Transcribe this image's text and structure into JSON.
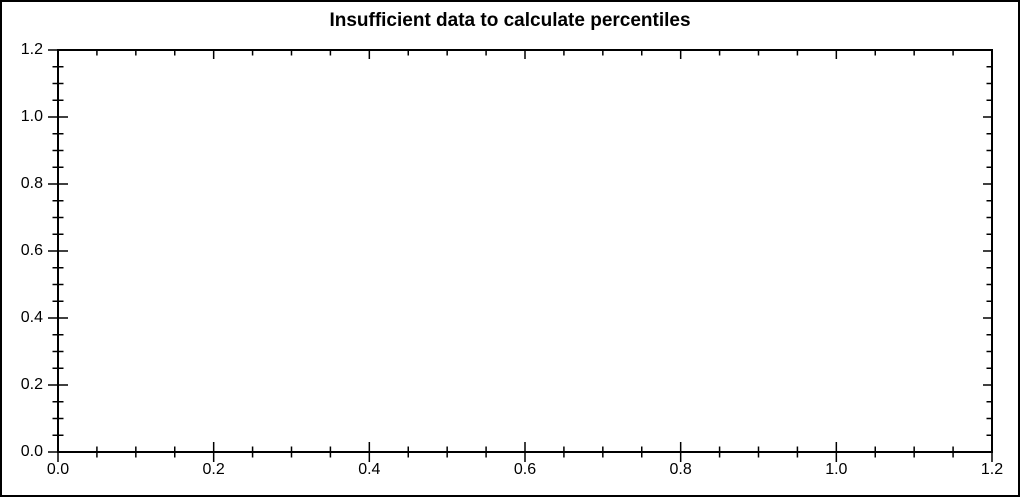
{
  "title": "Insufficient data to calculate percentiles",
  "colors": {
    "background": "#ffffff",
    "axis": "#000000",
    "text": "#000000"
  },
  "chart_data": {
    "type": "scatter",
    "title": "Insufficient data to calculate percentiles",
    "series": [],
    "xlabel": "",
    "ylabel": "",
    "xlim": [
      0.0,
      1.2
    ],
    "ylim": [
      0.0,
      1.2
    ],
    "x_tick_values": [
      0.0,
      0.2,
      0.4,
      0.6,
      0.8,
      1.0,
      1.2
    ],
    "x_tick_labels": [
      "0.0",
      "0.2",
      "0.4",
      "0.6",
      "0.8",
      "1.0",
      "1.2"
    ],
    "y_tick_values": [
      0.0,
      0.2,
      0.4,
      0.6,
      0.8,
      1.0,
      1.2
    ],
    "y_tick_labels": [
      "0.0",
      "0.2",
      "0.4",
      "0.6",
      "0.8",
      "1.0",
      "1.2"
    ],
    "minor_tick_step": 0.05,
    "grid": false,
    "legend": null,
    "plot_is_empty": true
  }
}
